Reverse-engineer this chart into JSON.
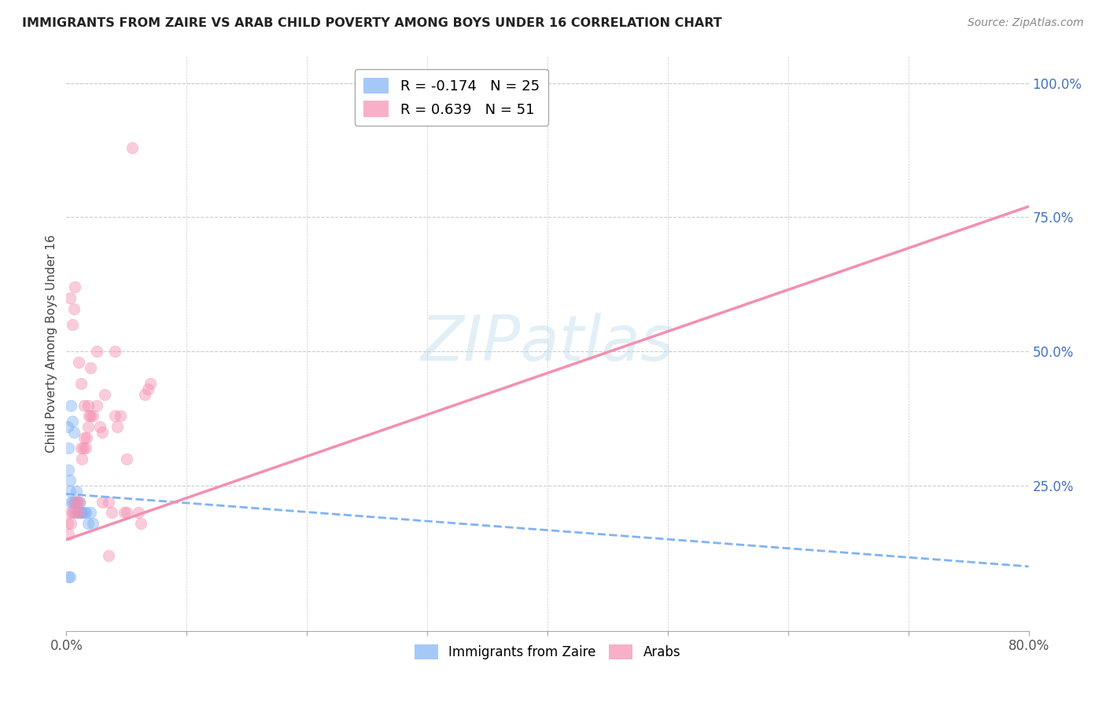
{
  "title": "IMMIGRANTS FROM ZAIRE VS ARAB CHILD POVERTY AMONG BOYS UNDER 16 CORRELATION CHART",
  "source": "Source: ZipAtlas.com",
  "ylabel": "Child Poverty Among Boys Under 16",
  "xlim": [
    0.0,
    0.8
  ],
  "ylim": [
    -0.02,
    1.05
  ],
  "x_ticks": [
    0.0,
    0.1,
    0.2,
    0.3,
    0.4,
    0.5,
    0.6,
    0.7,
    0.8
  ],
  "y_ticks_right": [
    0.0,
    0.25,
    0.5,
    0.75,
    1.0
  ],
  "y_tick_labels_right": [
    "",
    "25.0%",
    "50.0%",
    "75.0%",
    "100.0%"
  ],
  "grid_color": "#cccccc",
  "background_color": "#ffffff",
  "title_color": "#222222",
  "right_axis_color": "#4472c4",
  "zaire_color": "#7fb3f5",
  "arab_color": "#f48fb1",
  "zaire_R": -0.174,
  "zaire_N": 25,
  "arab_R": 0.639,
  "arab_N": 51,
  "zaire_scatter_x": [
    0.001,
    0.002,
    0.002,
    0.003,
    0.003,
    0.004,
    0.005,
    0.006,
    0.007,
    0.008,
    0.009,
    0.01,
    0.011,
    0.012,
    0.013,
    0.015,
    0.016,
    0.018,
    0.02,
    0.022,
    0.002,
    0.003,
    0.004,
    0.005,
    0.006
  ],
  "zaire_scatter_y": [
    0.36,
    0.32,
    0.28,
    0.26,
    0.24,
    0.22,
    0.22,
    0.2,
    0.22,
    0.24,
    0.22,
    0.2,
    0.22,
    0.2,
    0.2,
    0.2,
    0.2,
    0.18,
    0.2,
    0.18,
    0.08,
    0.08,
    0.4,
    0.37,
    0.35
  ],
  "arab_scatter_x": [
    0.001,
    0.002,
    0.003,
    0.004,
    0.005,
    0.006,
    0.007,
    0.008,
    0.009,
    0.01,
    0.011,
    0.012,
    0.013,
    0.014,
    0.015,
    0.016,
    0.017,
    0.018,
    0.019,
    0.02,
    0.022,
    0.025,
    0.028,
    0.03,
    0.032,
    0.035,
    0.038,
    0.04,
    0.042,
    0.045,
    0.048,
    0.05,
    0.055,
    0.06,
    0.062,
    0.065,
    0.068,
    0.07,
    0.003,
    0.005,
    0.007,
    0.01,
    0.012,
    0.015,
    0.018,
    0.02,
    0.025,
    0.03,
    0.035,
    0.04,
    0.05
  ],
  "arab_scatter_y": [
    0.18,
    0.16,
    0.2,
    0.18,
    0.2,
    0.58,
    0.22,
    0.2,
    0.22,
    0.2,
    0.22,
    0.32,
    0.3,
    0.32,
    0.34,
    0.32,
    0.34,
    0.36,
    0.38,
    0.38,
    0.38,
    0.4,
    0.36,
    0.35,
    0.42,
    0.22,
    0.2,
    0.38,
    0.36,
    0.38,
    0.2,
    0.2,
    0.88,
    0.2,
    0.18,
    0.42,
    0.43,
    0.44,
    0.6,
    0.55,
    0.62,
    0.48,
    0.44,
    0.4,
    0.4,
    0.47,
    0.5,
    0.22,
    0.12,
    0.5,
    0.3
  ],
  "zaire_trendline_x": [
    0.0,
    0.8
  ],
  "zaire_trendline_y": [
    0.235,
    0.1
  ],
  "arab_trendline_x": [
    0.0,
    0.8
  ],
  "arab_trendline_y": [
    0.15,
    0.77
  ],
  "watermark": "ZIPatlas",
  "watermark_color": "#b8d8ec",
  "marker_size": 110,
  "marker_alpha": 0.45,
  "figsize": [
    14.06,
    8.92
  ],
  "dpi": 100
}
